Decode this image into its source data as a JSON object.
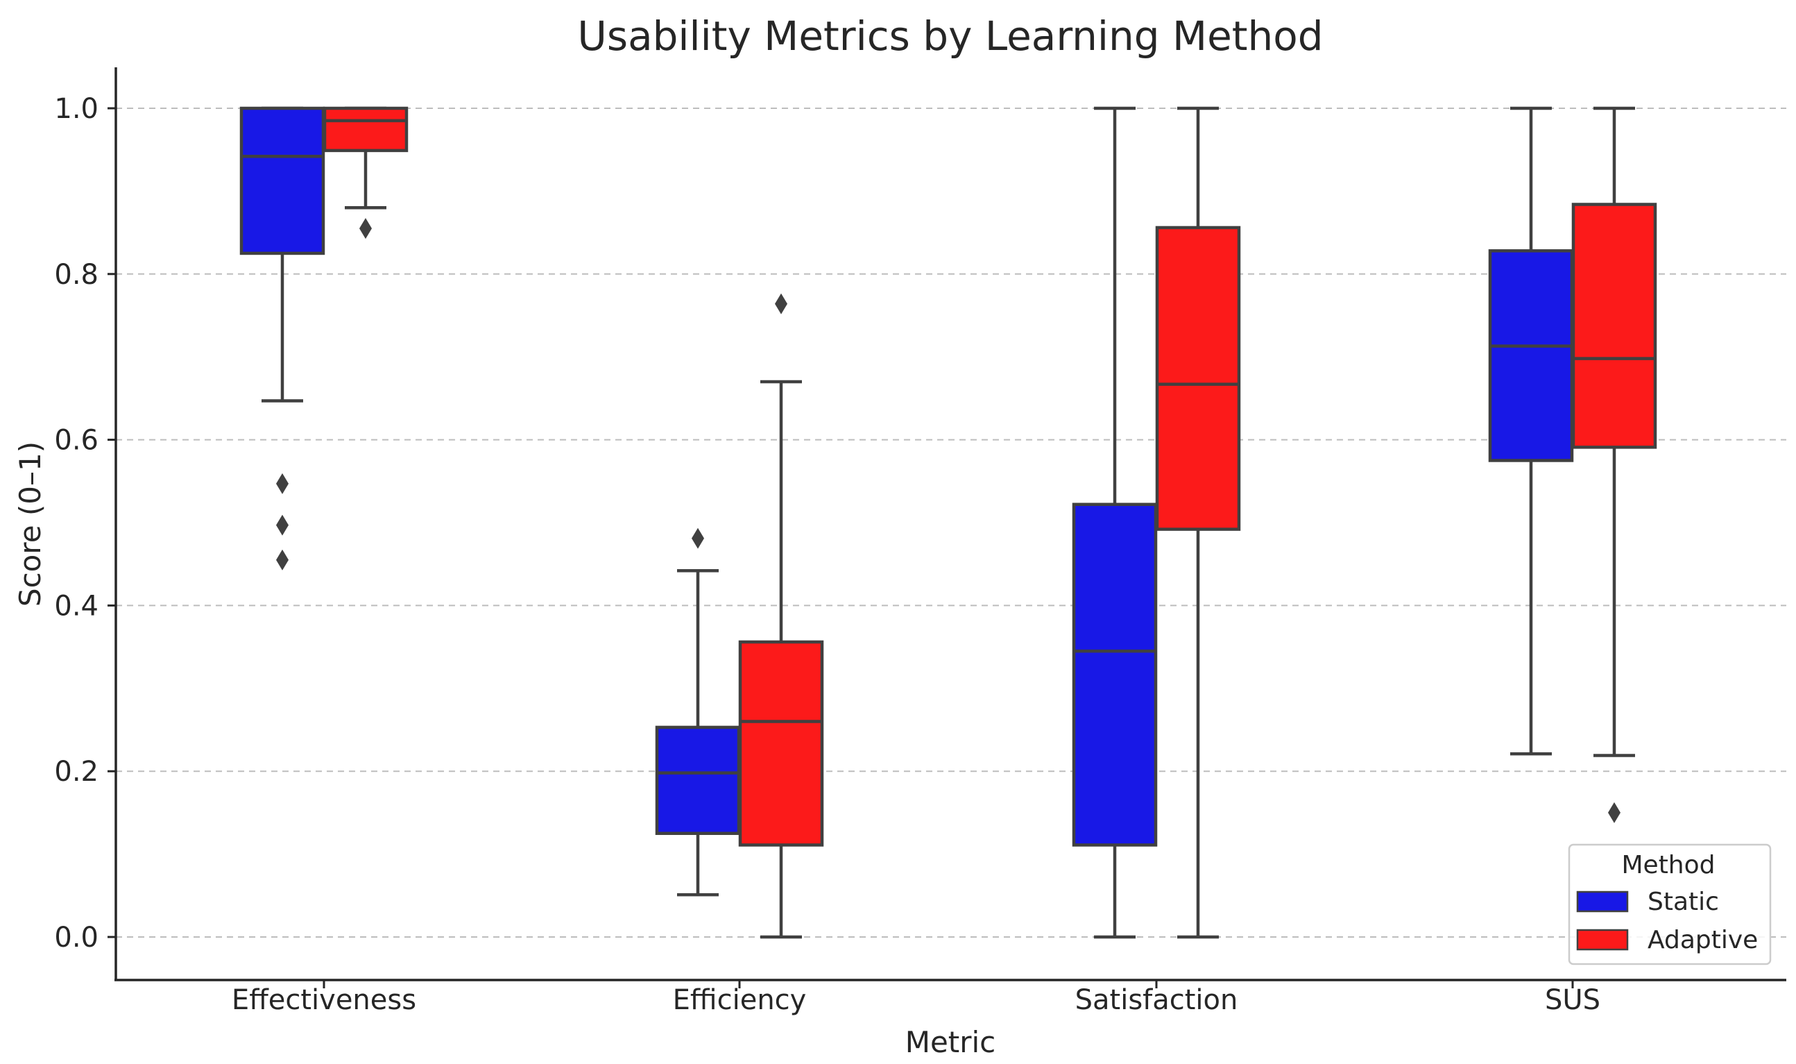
{
  "chart_data": {
    "type": "box",
    "title": "Usability Metrics by Learning Method",
    "xlabel": "Metric",
    "ylabel": "Score (0–1)",
    "ylim": [
      -0.05,
      1.05
    ],
    "yticks": [
      0.0,
      0.2,
      0.4,
      0.6,
      0.8,
      1.0
    ],
    "ytick_labels": [
      "0.0",
      "0.2",
      "0.4",
      "0.6",
      "0.8",
      "1.0"
    ],
    "grid": "horizontal-dashed",
    "categories": [
      "Effectiveness",
      "Efficiency",
      "Satisfaction",
      "SUS"
    ],
    "legend": {
      "title": "Method",
      "position": "lower-right",
      "entries": [
        "Static",
        "Adaptive"
      ]
    },
    "series": [
      {
        "name": "Static",
        "color": "#1818e6",
        "boxes": [
          {
            "q1": 0.825,
            "median": 0.942,
            "q3": 1.0,
            "whisker_low": 0.647,
            "whisker_high": 1.0,
            "outliers": [
              0.547,
              0.497,
              0.455
            ]
          },
          {
            "q1": 0.125,
            "median": 0.198,
            "q3": 0.253,
            "whisker_low": 0.051,
            "whisker_high": 0.442,
            "outliers": [
              0.481
            ]
          },
          {
            "q1": 0.111,
            "median": 0.345,
            "q3": 0.522,
            "whisker_low": 0.0,
            "whisker_high": 1.0,
            "outliers": []
          },
          {
            "q1": 0.575,
            "median": 0.713,
            "q3": 0.828,
            "whisker_low": 0.221,
            "whisker_high": 1.0,
            "outliers": []
          }
        ]
      },
      {
        "name": "Adaptive",
        "color": "#fc1a1a",
        "boxes": [
          {
            "q1": 0.949,
            "median": 0.985,
            "q3": 1.0,
            "whisker_low": 0.88,
            "whisker_high": 1.0,
            "outliers": [
              0.855
            ]
          },
          {
            "q1": 0.111,
            "median": 0.26,
            "q3": 0.356,
            "whisker_low": 0.0,
            "whisker_high": 0.67,
            "outliers": [
              0.764
            ]
          },
          {
            "q1": 0.492,
            "median": 0.667,
            "q3": 0.856,
            "whisker_low": 0.0,
            "whisker_high": 1.0,
            "outliers": []
          },
          {
            "q1": 0.591,
            "median": 0.698,
            "q3": 0.884,
            "whisker_low": 0.219,
            "whisker_high": 1.0,
            "outliers": [
              0.15
            ]
          }
        ]
      }
    ]
  }
}
